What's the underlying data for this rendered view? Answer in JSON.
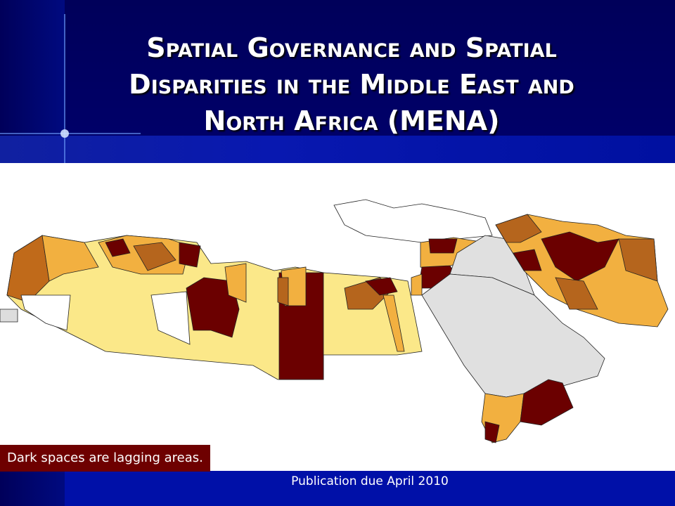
{
  "slide": {
    "title": "Spatial Governance and Spatial Disparities in the Middle East and North Africa (MENA)",
    "caption": "Dark spaces are lagging areas.",
    "footer": "Publication due April 2010"
  }
}
